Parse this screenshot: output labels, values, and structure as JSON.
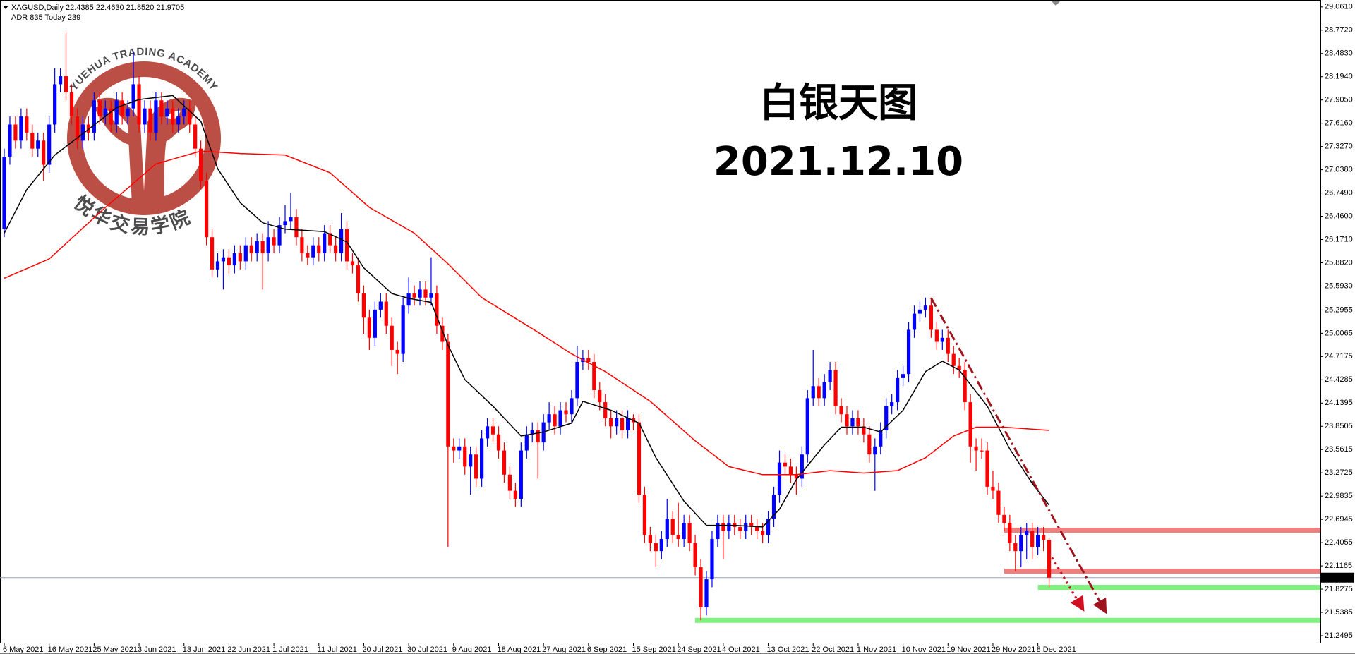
{
  "header": {
    "info": "XAGUSD,Daily  22.4385 22.4630 21.8520 21.9705",
    "adr": "ADR 835  Today 239"
  },
  "watermark": {
    "arc": "YUEHUA TRADING ACADEMY",
    "name": "悦华交易学院"
  },
  "chart_data": {
    "type": "candlestick",
    "annotations": [
      "白银天图",
      "2021.12.10"
    ],
    "annotation_color": "#9b1fe8",
    "up_color": "#0000ff",
    "down_color": "#ff0000",
    "categories": [
      "6 May 2021",
      null,
      null,
      null,
      null,
      null,
      null,
      null,
      "16 May 2021",
      null,
      null,
      null,
      null,
      null,
      null,
      null,
      "25 May 2021",
      null,
      null,
      null,
      null,
      null,
      null,
      null,
      "3 Jun 2021",
      null,
      null,
      null,
      null,
      null,
      null,
      null,
      "13 Jun 2021",
      null,
      null,
      null,
      null,
      null,
      null,
      null,
      "22 Jun 2021",
      null,
      null,
      null,
      null,
      null,
      null,
      null,
      "1 Jul 2021",
      null,
      null,
      null,
      null,
      null,
      null,
      null,
      "11 Jul 2021",
      null,
      null,
      null,
      null,
      null,
      null,
      null,
      "20 Jul 2021",
      null,
      null,
      null,
      null,
      null,
      null,
      null,
      "30 Jul 2021",
      null,
      null,
      null,
      null,
      null,
      null,
      null,
      "9 Aug 2021",
      null,
      null,
      null,
      null,
      null,
      null,
      null,
      "18 Aug 2021",
      null,
      null,
      null,
      null,
      null,
      null,
      null,
      "27 Aug 2021",
      null,
      null,
      null,
      null,
      null,
      null,
      null,
      "6 Sep 2021",
      null,
      null,
      null,
      null,
      null,
      null,
      null,
      "15 Sep 2021",
      null,
      null,
      null,
      null,
      null,
      null,
      null,
      "24 Sep 2021",
      null,
      null,
      null,
      null,
      null,
      null,
      null,
      "4 Oct 2021",
      null,
      null,
      null,
      null,
      null,
      null,
      null,
      "13 Oct 2021",
      null,
      null,
      null,
      null,
      null,
      null,
      null,
      "22 Oct 2021",
      null,
      null,
      null,
      null,
      null,
      null,
      null,
      "1 Nov 2021",
      null,
      null,
      null,
      null,
      null,
      null,
      null,
      "10 Nov 2021",
      null,
      null,
      null,
      null,
      null,
      null,
      null,
      "19 Nov 2021",
      null,
      null,
      null,
      null,
      null,
      null,
      null,
      "29 Nov 2021",
      null,
      null,
      null,
      null,
      null,
      null,
      null,
      "8 Dec 2021",
      null,
      null
    ],
    "open": [
      26.3,
      27.2,
      27.6,
      27.4,
      27.7,
      27.5,
      27.3,
      27.4,
      27.1,
      27.6,
      28.1,
      28.2,
      28.0,
      27.7,
      27.4,
      27.6,
      27.5,
      27.9,
      27.7,
      27.8,
      27.6,
      27.9,
      27.7,
      27.8,
      28.1,
      27.6,
      27.8,
      27.5,
      27.9,
      27.7,
      27.8,
      27.6,
      27.7,
      27.8,
      27.6,
      27.3,
      26.9,
      26.2,
      25.8,
      25.9,
      25.95,
      25.85,
      26.0,
      25.9,
      26.1,
      26.0,
      26.15,
      26.0,
      26.2,
      26.1,
      26.35,
      26.4,
      26.45,
      26.2,
      26.0,
      25.95,
      26.1,
      26.0,
      26.25,
      26.1,
      26.0,
      26.3,
      25.9,
      25.85,
      25.5,
      25.2,
      24.95,
      25.3,
      25.4,
      25.1,
      24.8,
      24.75,
      25.35,
      25.5,
      25.45,
      25.55,
      25.45,
      25.5,
      25.1,
      24.9,
      23.6,
      23.55,
      23.6,
      23.35,
      23.5,
      23.2,
      23.7,
      23.85,
      23.75,
      23.55,
      23.25,
      23.05,
      22.95,
      23.55,
      23.75,
      23.8,
      23.65,
      23.9,
      24.0,
      23.85,
      24.05,
      24.0,
      24.2,
      24.65,
      24.7,
      24.65,
      24.3,
      24.15,
      23.95,
      23.85,
      23.95,
      23.8,
      23.95,
      23.9,
      23.0,
      22.5,
      22.4,
      22.3,
      22.45,
      22.7,
      22.5,
      22.45,
      22.65,
      22.4,
      22.1,
      21.6,
      21.95,
      22.45,
      22.65,
      22.55,
      22.65,
      22.6,
      22.55,
      22.65,
      22.6,
      22.55,
      22.5,
      22.7,
      23.0,
      23.4,
      23.35,
      23.25,
      23.2,
      23.5,
      24.2,
      24.35,
      24.2,
      24.4,
      24.55,
      24.1,
      24.0,
      23.85,
      23.95,
      23.85,
      23.75,
      23.5,
      23.6,
      23.8,
      24.1,
      24.15,
      24.45,
      24.5,
      25.05,
      25.25,
      25.3,
      25.35,
      25.05,
      24.9,
      24.95,
      24.75,
      24.6,
      24.55,
      24.15,
      23.6,
      23.55,
      23.55,
      23.1,
      23.05,
      22.75,
      22.65,
      22.4,
      22.3,
      22.5,
      22.55,
      22.35,
      22.5,
      22.4385
    ],
    "high": [
      27.3,
      27.7,
      27.7,
      27.8,
      27.8,
      27.6,
      27.5,
      27.5,
      27.7,
      28.3,
      28.3,
      28.74,
      28.1,
      27.8,
      27.7,
      27.7,
      28.0,
      28.0,
      27.9,
      27.9,
      28.0,
      28.0,
      27.9,
      28.5,
      28.2,
      27.9,
      27.9,
      28.0,
      28.0,
      27.9,
      27.9,
      27.8,
      27.9,
      27.9,
      27.7,
      27.4,
      27.0,
      26.3,
      26.0,
      26.05,
      26.05,
      26.1,
      26.1,
      26.2,
      26.2,
      26.25,
      26.25,
      26.4,
      26.3,
      26.45,
      26.6,
      26.75,
      26.55,
      26.3,
      26.1,
      26.2,
      26.2,
      26.35,
      26.35,
      26.2,
      26.5,
      26.4,
      26.0,
      25.95,
      25.6,
      25.3,
      25.4,
      25.5,
      25.5,
      25.2,
      24.9,
      25.45,
      25.7,
      25.6,
      25.65,
      25.65,
      25.95,
      25.6,
      25.2,
      25.0,
      23.7,
      23.7,
      23.7,
      23.6,
      23.6,
      23.8,
      23.95,
      23.95,
      23.85,
      23.65,
      23.35,
      23.15,
      23.65,
      23.85,
      23.9,
      23.9,
      24.0,
      24.15,
      24.1,
      24.15,
      24.15,
      24.3,
      24.85,
      24.8,
      24.8,
      24.75,
      24.4,
      24.25,
      24.05,
      24.05,
      24.05,
      24.05,
      24.0,
      24.0,
      23.1,
      22.6,
      22.5,
      22.55,
      22.95,
      22.8,
      22.9,
      22.75,
      22.75,
      22.5,
      22.2,
      22.05,
      22.55,
      22.75,
      22.75,
      22.75,
      22.75,
      22.7,
      22.75,
      22.75,
      22.7,
      22.65,
      22.8,
      23.1,
      23.55,
      23.5,
      23.45,
      23.35,
      23.6,
      24.3,
      24.8,
      24.45,
      24.5,
      24.65,
      24.65,
      24.2,
      24.1,
      24.05,
      24.05,
      23.95,
      23.85,
      23.7,
      23.9,
      24.2,
      24.25,
      24.55,
      24.6,
      25.15,
      25.35,
      25.4,
      25.45,
      25.45,
      25.15,
      25.05,
      25.05,
      24.85,
      24.7,
      24.65,
      24.25,
      23.7,
      23.7,
      23.65,
      23.3,
      23.15,
      22.85,
      22.75,
      22.5,
      22.6,
      22.65,
      22.65,
      22.6,
      22.6,
      22.463
    ],
    "low": [
      26.2,
      27.1,
      27.3,
      27.3,
      27.4,
      27.2,
      27.2,
      26.9,
      27.0,
      27.5,
      28.0,
      27.9,
      27.6,
      27.3,
      27.3,
      27.4,
      27.4,
      27.6,
      27.6,
      27.5,
      27.5,
      27.6,
      27.6,
      27.7,
      27.5,
      27.5,
      27.4,
      27.4,
      27.6,
      27.6,
      27.5,
      27.5,
      27.6,
      27.5,
      27.2,
      26.8,
      26.1,
      25.7,
      25.7,
      25.55,
      25.75,
      25.75,
      25.8,
      25.8,
      25.9,
      25.9,
      25.55,
      25.9,
      26.0,
      26.0,
      26.25,
      26.3,
      26.1,
      25.9,
      25.85,
      25.85,
      25.9,
      25.9,
      26.0,
      25.9,
      25.9,
      25.8,
      25.75,
      25.4,
      25.0,
      24.8,
      24.85,
      25.2,
      25.0,
      24.6,
      24.5,
      24.65,
      25.25,
      25.35,
      25.35,
      25.35,
      25.35,
      25.0,
      24.8,
      22.35,
      23.4,
      23.45,
      23.25,
      23.0,
      23.1,
      23.1,
      23.6,
      23.65,
      23.45,
      23.15,
      22.95,
      22.85,
      22.85,
      23.45,
      23.65,
      23.2,
      23.55,
      23.8,
      23.75,
      23.75,
      23.9,
      23.9,
      24.1,
      24.55,
      24.55,
      24.2,
      24.05,
      23.85,
      23.7,
      23.75,
      23.7,
      23.7,
      23.8,
      22.9,
      22.4,
      22.3,
      22.1,
      22.2,
      22.35,
      22.4,
      22.35,
      22.35,
      22.3,
      22.0,
      21.44,
      21.5,
      21.85,
      22.35,
      22.2,
      22.45,
      22.5,
      22.45,
      22.45,
      22.5,
      22.45,
      22.4,
      22.4,
      22.6,
      22.9,
      23.25,
      23.15,
      23.0,
      23.1,
      23.4,
      24.1,
      24.1,
      24.1,
      24.3,
      24.0,
      23.9,
      23.75,
      23.75,
      23.75,
      23.65,
      23.4,
      23.05,
      23.5,
      23.7,
      24.0,
      24.05,
      24.35,
      24.4,
      24.95,
      25.15,
      25.2,
      24.95,
      24.8,
      24.8,
      24.65,
      24.5,
      24.45,
      24.05,
      23.4,
      23.3,
      23.45,
      23.0,
      22.95,
      22.65,
      22.55,
      22.3,
      22.05,
      22.1,
      22.2,
      22.2,
      22.25,
      22.3,
      21.852
    ],
    "close": [
      27.2,
      27.6,
      27.4,
      27.7,
      27.5,
      27.3,
      27.4,
      27.1,
      27.6,
      28.1,
      28.2,
      28.0,
      27.7,
      27.4,
      27.6,
      27.5,
      27.9,
      27.7,
      27.8,
      27.6,
      27.9,
      27.7,
      27.8,
      28.1,
      27.6,
      27.8,
      27.5,
      27.9,
      27.7,
      27.8,
      27.6,
      27.7,
      27.8,
      27.6,
      27.3,
      26.9,
      26.2,
      25.8,
      25.9,
      25.95,
      25.85,
      26.0,
      25.9,
      26.1,
      26.0,
      26.15,
      26.0,
      26.2,
      26.1,
      26.35,
      26.4,
      26.45,
      26.2,
      26.0,
      25.95,
      26.1,
      26.0,
      26.25,
      26.1,
      26.0,
      26.3,
      25.9,
      25.85,
      25.5,
      25.2,
      24.95,
      25.3,
      25.4,
      25.1,
      24.8,
      24.75,
      25.35,
      25.5,
      25.45,
      25.55,
      25.45,
      25.5,
      25.1,
      24.9,
      23.6,
      23.55,
      23.6,
      23.35,
      23.5,
      23.2,
      23.7,
      23.85,
      23.75,
      23.55,
      23.25,
      23.05,
      22.95,
      23.55,
      23.75,
      23.8,
      23.65,
      23.9,
      24.0,
      23.85,
      24.05,
      24.0,
      24.2,
      24.65,
      24.7,
      24.65,
      24.3,
      24.15,
      23.95,
      23.85,
      23.95,
      23.8,
      23.95,
      23.9,
      23.0,
      22.5,
      22.4,
      22.3,
      22.45,
      22.7,
      22.5,
      22.45,
      22.65,
      22.4,
      22.1,
      21.6,
      21.95,
      22.45,
      22.65,
      22.55,
      22.65,
      22.6,
      22.55,
      22.65,
      22.6,
      22.55,
      22.5,
      22.7,
      23.0,
      23.4,
      23.35,
      23.25,
      23.2,
      23.5,
      24.2,
      24.35,
      24.2,
      24.4,
      24.55,
      24.1,
      24.0,
      23.85,
      23.95,
      23.85,
      23.75,
      23.5,
      23.6,
      23.8,
      24.1,
      24.15,
      24.45,
      24.5,
      25.05,
      25.25,
      25.3,
      25.35,
      25.05,
      24.9,
      24.95,
      24.75,
      24.6,
      24.55,
      24.15,
      23.6,
      23.55,
      23.55,
      23.1,
      23.05,
      22.75,
      22.65,
      22.4,
      22.3,
      22.5,
      22.55,
      22.35,
      22.5,
      22.4385,
      21.9705
    ],
    "lines": [
      {
        "color": "#000000",
        "x": [
          0,
          4,
          9,
          15,
          20,
          24,
          30,
          35,
          38,
          42,
          46,
          50,
          57,
          61,
          64,
          69,
          72,
          76,
          79,
          82,
          87,
          92,
          96,
          101,
          103,
          108,
          113,
          116,
          121,
          125,
          130,
          135,
          138,
          141,
          146,
          149,
          153,
          156,
          160,
          164,
          167,
          170,
          175,
          179,
          183,
          186
        ],
        "values": [
          26.25,
          26.79,
          27.22,
          27.54,
          27.81,
          27.91,
          27.96,
          27.64,
          27.05,
          26.63,
          26.38,
          26.3,
          26.27,
          26.14,
          25.82,
          25.5,
          25.44,
          25.39,
          24.86,
          24.43,
          24.1,
          23.73,
          23.78,
          23.89,
          24.16,
          24.05,
          23.89,
          23.46,
          22.92,
          22.62,
          22.62,
          22.6,
          22.82,
          23.19,
          23.62,
          23.84,
          23.84,
          23.78,
          24.05,
          24.53,
          24.66,
          24.55,
          24.1,
          23.57,
          23.14,
          22.87
        ]
      },
      {
        "color": "#ff0000",
        "x": [
          0,
          8,
          18,
          27,
          35,
          42,
          50,
          58,
          65,
          73,
          79,
          85,
          95,
          101,
          107,
          115,
          123,
          129,
          135,
          141,
          147,
          153,
          159,
          164,
          169,
          173,
          178,
          182,
          186
        ],
        "values": [
          25.69,
          25.93,
          26.57,
          27.11,
          27.27,
          27.24,
          27.22,
          27.0,
          26.57,
          26.25,
          25.87,
          25.45,
          25.02,
          24.75,
          24.53,
          24.16,
          23.67,
          23.35,
          23.25,
          23.25,
          23.3,
          23.27,
          23.3,
          23.46,
          23.73,
          23.84,
          23.84,
          23.82,
          23.8
        ]
      }
    ],
    "levels": [
      {
        "value": 22.56,
        "x_start": 178,
        "color": "#f08080"
      },
      {
        "value": 22.05,
        "x_start": 178,
        "color": "#f08080"
      },
      {
        "value": 21.85,
        "x_start": 184,
        "color": "#80f080"
      },
      {
        "value": 21.44,
        "x_start": 123,
        "color": "#80f080"
      }
    ],
    "trendlines": [
      {
        "style": "dashdot",
        "color": "#a0141e",
        "x": [
          165,
          196
        ],
        "y": [
          25.445,
          21.55
        ]
      },
      {
        "style": "dotted",
        "color": "#d01020",
        "x": [
          186,
          192
        ],
        "y": [
          22.28,
          21.58
        ]
      }
    ],
    "ylim": [
      21.153,
      29.147
    ],
    "yticks": [
      {
        "value": 29.061,
        "label": "29.0610"
      },
      {
        "value": 28.772,
        "label": "28.7720"
      },
      {
        "value": 28.483,
        "label": "28.4830"
      },
      {
        "value": 28.194,
        "label": "28.1940"
      },
      {
        "value": 27.905,
        "label": "27.9050"
      },
      {
        "value": 27.616,
        "label": "27.6160"
      },
      {
        "value": 27.327,
        "label": "27.3270"
      },
      {
        "value": 27.038,
        "label": "27.0380"
      },
      {
        "value": 26.749,
        "label": "26.7490"
      },
      {
        "value": 26.46,
        "label": "26.4600"
      },
      {
        "value": 26.171,
        "label": "26.1710"
      },
      {
        "value": 25.882,
        "label": "25.8820"
      },
      {
        "value": 25.593,
        "label": "25.5930"
      },
      25.2955,
      25.0065,
      24.7175,
      24.4285,
      24.1395,
      23.8505,
      23.5615,
      23.2725,
      22.9835,
      22.6945,
      22.4055,
      22.1165,
      21.8275,
      21.5385,
      21.2495
    ]
  }
}
